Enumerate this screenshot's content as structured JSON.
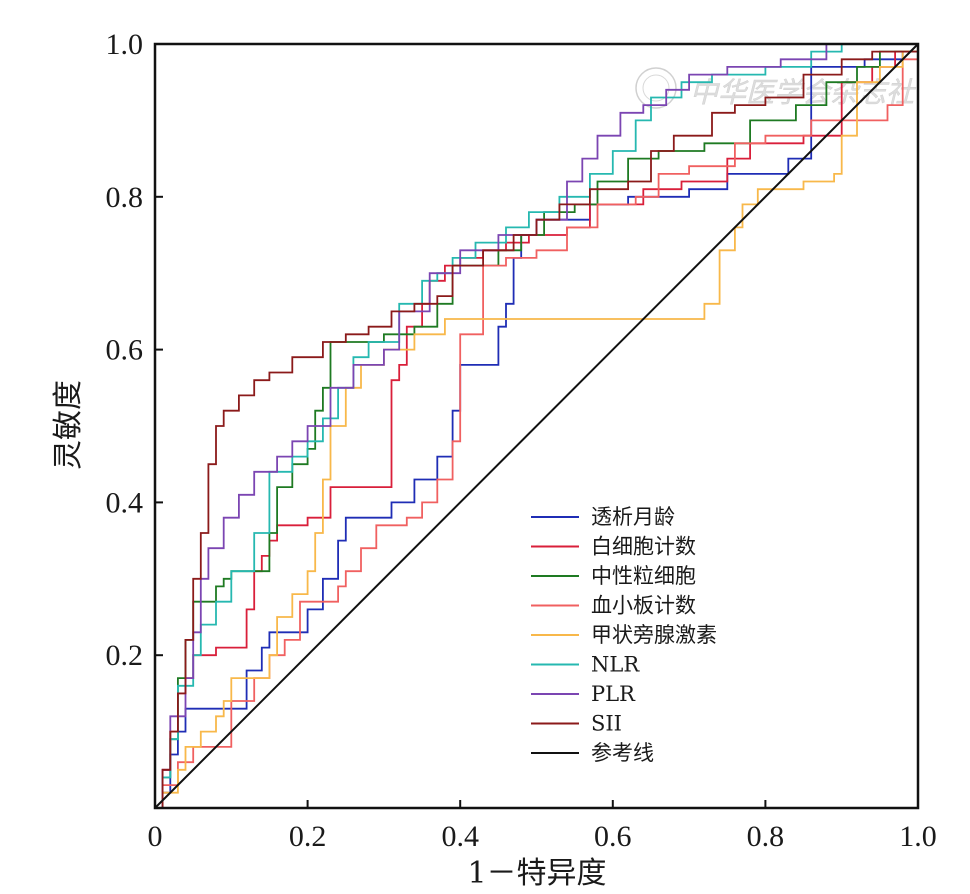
{
  "chart_data": {
    "type": "line",
    "title": "",
    "xlabel": "1－特异度",
    "ylabel": "灵敏度",
    "xlim": [
      0,
      1.0
    ],
    "ylim": [
      0,
      1.0
    ],
    "xticks": [
      "0",
      "0.2",
      "0.4",
      "0.6",
      "0.8",
      "1.0"
    ],
    "yticks": [
      "0.2",
      "0.4",
      "0.6",
      "0.8",
      "1.0"
    ],
    "grid": false,
    "legend_position": "bottom-right",
    "watermark": "中华医学会杂志社",
    "series": [
      {
        "name": "透析月龄",
        "color": "#1f2db5",
        "points": [
          [
            0,
            0
          ],
          [
            0.01,
            0.02
          ],
          [
            0.02,
            0.07
          ],
          [
            0.03,
            0.1
          ],
          [
            0.04,
            0.13
          ],
          [
            0.1,
            0.13
          ],
          [
            0.12,
            0.18
          ],
          [
            0.14,
            0.21
          ],
          [
            0.15,
            0.23
          ],
          [
            0.17,
            0.23
          ],
          [
            0.2,
            0.26
          ],
          [
            0.22,
            0.3
          ],
          [
            0.24,
            0.35
          ],
          [
            0.25,
            0.38
          ],
          [
            0.3,
            0.38
          ],
          [
            0.31,
            0.4
          ],
          [
            0.33,
            0.4
          ],
          [
            0.34,
            0.43
          ],
          [
            0.37,
            0.46
          ],
          [
            0.39,
            0.52
          ],
          [
            0.4,
            0.58
          ],
          [
            0.43,
            0.58
          ],
          [
            0.45,
            0.63
          ],
          [
            0.46,
            0.66
          ],
          [
            0.47,
            0.72
          ],
          [
            0.48,
            0.75
          ],
          [
            0.5,
            0.77
          ],
          [
            0.57,
            0.79
          ],
          [
            0.62,
            0.8
          ],
          [
            0.7,
            0.81
          ],
          [
            0.75,
            0.83
          ],
          [
            0.78,
            0.83
          ],
          [
            0.83,
            0.85
          ],
          [
            0.86,
            0.97
          ],
          [
            0.89,
            0.97
          ],
          [
            0.93,
            0.98
          ],
          [
            0.98,
            0.99
          ],
          [
            1,
            1
          ]
        ]
      },
      {
        "name": "白细胞计数",
        "color": "#d91f3a",
        "points": [
          [
            0,
            0
          ],
          [
            0.01,
            0.05
          ],
          [
            0.02,
            0.1
          ],
          [
            0.03,
            0.15
          ],
          [
            0.04,
            0.17
          ],
          [
            0.05,
            0.2
          ],
          [
            0.07,
            0.2
          ],
          [
            0.08,
            0.21
          ],
          [
            0.11,
            0.21
          ],
          [
            0.12,
            0.26
          ],
          [
            0.13,
            0.31
          ],
          [
            0.14,
            0.33
          ],
          [
            0.15,
            0.35
          ],
          [
            0.16,
            0.37
          ],
          [
            0.19,
            0.37
          ],
          [
            0.2,
            0.38
          ],
          [
            0.23,
            0.42
          ],
          [
            0.3,
            0.42
          ],
          [
            0.31,
            0.56
          ],
          [
            0.32,
            0.58
          ],
          [
            0.33,
            0.63
          ],
          [
            0.35,
            0.66
          ],
          [
            0.36,
            0.69
          ],
          [
            0.38,
            0.71
          ],
          [
            0.4,
            0.72
          ],
          [
            0.43,
            0.73
          ],
          [
            0.46,
            0.74
          ],
          [
            0.49,
            0.75
          ],
          [
            0.54,
            0.76
          ],
          [
            0.57,
            0.79
          ],
          [
            0.64,
            0.81
          ],
          [
            0.69,
            0.82
          ],
          [
            0.75,
            0.85
          ],
          [
            0.78,
            0.87
          ],
          [
            0.85,
            0.88
          ],
          [
            0.9,
            0.95
          ],
          [
            0.94,
            0.97
          ],
          [
            0.97,
            0.99
          ],
          [
            1,
            1
          ]
        ]
      },
      {
        "name": "中性粒细胞",
        "color": "#1e7a22",
        "points": [
          [
            0,
            0
          ],
          [
            0.01,
            0.04
          ],
          [
            0.02,
            0.09
          ],
          [
            0.03,
            0.17
          ],
          [
            0.04,
            0.22
          ],
          [
            0.05,
            0.27
          ],
          [
            0.08,
            0.29
          ],
          [
            0.09,
            0.3
          ],
          [
            0.1,
            0.31
          ],
          [
            0.14,
            0.31
          ],
          [
            0.15,
            0.36
          ],
          [
            0.16,
            0.42
          ],
          [
            0.18,
            0.45
          ],
          [
            0.2,
            0.47
          ],
          [
            0.21,
            0.52
          ],
          [
            0.22,
            0.55
          ],
          [
            0.23,
            0.61
          ],
          [
            0.3,
            0.62
          ],
          [
            0.34,
            0.63
          ],
          [
            0.37,
            0.66
          ],
          [
            0.39,
            0.71
          ],
          [
            0.45,
            0.73
          ],
          [
            0.48,
            0.75
          ],
          [
            0.51,
            0.78
          ],
          [
            0.55,
            0.79
          ],
          [
            0.58,
            0.82
          ],
          [
            0.62,
            0.85
          ],
          [
            0.66,
            0.86
          ],
          [
            0.72,
            0.87
          ],
          [
            0.78,
            0.9
          ],
          [
            0.84,
            0.92
          ],
          [
            0.88,
            0.95
          ],
          [
            0.92,
            0.97
          ],
          [
            0.95,
            0.99
          ],
          [
            1,
            1
          ]
        ]
      },
      {
        "name": "血小板计数",
        "color": "#f06060",
        "points": [
          [
            0,
            0
          ],
          [
            0.01,
            0.03
          ],
          [
            0.03,
            0.06
          ],
          [
            0.05,
            0.08
          ],
          [
            0.08,
            0.08
          ],
          [
            0.1,
            0.14
          ],
          [
            0.13,
            0.17
          ],
          [
            0.15,
            0.2
          ],
          [
            0.17,
            0.22
          ],
          [
            0.19,
            0.27
          ],
          [
            0.22,
            0.27
          ],
          [
            0.24,
            0.29
          ],
          [
            0.25,
            0.31
          ],
          [
            0.27,
            0.34
          ],
          [
            0.29,
            0.37
          ],
          [
            0.33,
            0.38
          ],
          [
            0.35,
            0.4
          ],
          [
            0.37,
            0.43
          ],
          [
            0.39,
            0.48
          ],
          [
            0.4,
            0.62
          ],
          [
            0.43,
            0.71
          ],
          [
            0.46,
            0.72
          ],
          [
            0.5,
            0.73
          ],
          [
            0.54,
            0.76
          ],
          [
            0.58,
            0.79
          ],
          [
            0.63,
            0.8
          ],
          [
            0.66,
            0.83
          ],
          [
            0.7,
            0.84
          ],
          [
            0.76,
            0.87
          ],
          [
            0.8,
            0.88
          ],
          [
            0.86,
            0.9
          ],
          [
            0.91,
            0.9
          ],
          [
            0.96,
            0.92
          ],
          [
            0.98,
            0.98
          ],
          [
            1,
            1
          ]
        ]
      },
      {
        "name": "甲状旁腺激素",
        "color": "#f8b84a",
        "points": [
          [
            0,
            0
          ],
          [
            0.01,
            0.02
          ],
          [
            0.03,
            0.05
          ],
          [
            0.04,
            0.08
          ],
          [
            0.06,
            0.1
          ],
          [
            0.08,
            0.12
          ],
          [
            0.09,
            0.14
          ],
          [
            0.1,
            0.17
          ],
          [
            0.15,
            0.2
          ],
          [
            0.16,
            0.25
          ],
          [
            0.18,
            0.28
          ],
          [
            0.2,
            0.31
          ],
          [
            0.21,
            0.36
          ],
          [
            0.22,
            0.43
          ],
          [
            0.23,
            0.5
          ],
          [
            0.25,
            0.55
          ],
          [
            0.27,
            0.58
          ],
          [
            0.3,
            0.6
          ],
          [
            0.34,
            0.62
          ],
          [
            0.38,
            0.64
          ],
          [
            0.67,
            0.64
          ],
          [
            0.72,
            0.66
          ],
          [
            0.74,
            0.73
          ],
          [
            0.76,
            0.76
          ],
          [
            0.77,
            0.79
          ],
          [
            0.79,
            0.81
          ],
          [
            0.85,
            0.82
          ],
          [
            0.89,
            0.83
          ],
          [
            0.9,
            0.88
          ],
          [
            0.92,
            0.95
          ],
          [
            0.95,
            0.97
          ],
          [
            0.98,
            0.99
          ],
          [
            1,
            1
          ]
        ]
      },
      {
        "name": "NLR",
        "color": "#26b8b0",
        "points": [
          [
            0,
            0
          ],
          [
            0.01,
            0.04
          ],
          [
            0.02,
            0.09
          ],
          [
            0.03,
            0.16
          ],
          [
            0.05,
            0.2
          ],
          [
            0.06,
            0.24
          ],
          [
            0.08,
            0.27
          ],
          [
            0.1,
            0.31
          ],
          [
            0.13,
            0.36
          ],
          [
            0.15,
            0.44
          ],
          [
            0.18,
            0.46
          ],
          [
            0.2,
            0.48
          ],
          [
            0.22,
            0.51
          ],
          [
            0.24,
            0.55
          ],
          [
            0.26,
            0.59
          ],
          [
            0.28,
            0.61
          ],
          [
            0.32,
            0.66
          ],
          [
            0.35,
            0.69
          ],
          [
            0.37,
            0.7
          ],
          [
            0.39,
            0.72
          ],
          [
            0.42,
            0.74
          ],
          [
            0.46,
            0.76
          ],
          [
            0.49,
            0.78
          ],
          [
            0.53,
            0.8
          ],
          [
            0.57,
            0.83
          ],
          [
            0.6,
            0.86
          ],
          [
            0.63,
            0.9
          ],
          [
            0.65,
            0.93
          ],
          [
            0.69,
            0.95
          ],
          [
            0.73,
            0.96
          ],
          [
            0.8,
            0.97
          ],
          [
            0.86,
            0.99
          ],
          [
            0.9,
            1
          ],
          [
            1,
            1
          ]
        ]
      },
      {
        "name": "PLR",
        "color": "#7b45b2",
        "points": [
          [
            0,
            0
          ],
          [
            0.01,
            0.05
          ],
          [
            0.02,
            0.12
          ],
          [
            0.04,
            0.17
          ],
          [
            0.05,
            0.23
          ],
          [
            0.06,
            0.3
          ],
          [
            0.07,
            0.34
          ],
          [
            0.09,
            0.38
          ],
          [
            0.11,
            0.41
          ],
          [
            0.13,
            0.44
          ],
          [
            0.16,
            0.46
          ],
          [
            0.18,
            0.48
          ],
          [
            0.2,
            0.5
          ],
          [
            0.23,
            0.55
          ],
          [
            0.26,
            0.58
          ],
          [
            0.3,
            0.6
          ],
          [
            0.32,
            0.65
          ],
          [
            0.36,
            0.7
          ],
          [
            0.4,
            0.73
          ],
          [
            0.45,
            0.75
          ],
          [
            0.5,
            0.77
          ],
          [
            0.54,
            0.82
          ],
          [
            0.56,
            0.85
          ],
          [
            0.58,
            0.88
          ],
          [
            0.61,
            0.91
          ],
          [
            0.64,
            0.92
          ],
          [
            0.67,
            0.94
          ],
          [
            0.7,
            0.96
          ],
          [
            0.75,
            0.97
          ],
          [
            0.82,
            0.98
          ],
          [
            0.88,
            1
          ],
          [
            1,
            1
          ]
        ]
      },
      {
        "name": "SII",
        "color": "#8b1a1a",
        "points": [
          [
            0,
            0
          ],
          [
            0.01,
            0.05
          ],
          [
            0.02,
            0.1
          ],
          [
            0.03,
            0.15
          ],
          [
            0.04,
            0.22
          ],
          [
            0.05,
            0.3
          ],
          [
            0.06,
            0.36
          ],
          [
            0.07,
            0.45
          ],
          [
            0.08,
            0.5
          ],
          [
            0.09,
            0.52
          ],
          [
            0.11,
            0.54
          ],
          [
            0.13,
            0.56
          ],
          [
            0.15,
            0.57
          ],
          [
            0.18,
            0.59
          ],
          [
            0.22,
            0.61
          ],
          [
            0.25,
            0.62
          ],
          [
            0.28,
            0.63
          ],
          [
            0.31,
            0.65
          ],
          [
            0.34,
            0.66
          ],
          [
            0.37,
            0.67
          ],
          [
            0.39,
            0.71
          ],
          [
            0.43,
            0.73
          ],
          [
            0.47,
            0.75
          ],
          [
            0.5,
            0.77
          ],
          [
            0.53,
            0.79
          ],
          [
            0.57,
            0.81
          ],
          [
            0.62,
            0.82
          ],
          [
            0.65,
            0.86
          ],
          [
            0.68,
            0.88
          ],
          [
            0.73,
            0.91
          ],
          [
            0.76,
            0.92
          ],
          [
            0.8,
            0.93
          ],
          [
            0.85,
            0.96
          ],
          [
            0.9,
            0.98
          ],
          [
            0.94,
            0.99
          ],
          [
            1,
            1
          ]
        ]
      },
      {
        "name": "参考线",
        "color": "#111111",
        "points": [
          [
            0,
            0
          ],
          [
            1,
            1
          ]
        ]
      }
    ]
  }
}
